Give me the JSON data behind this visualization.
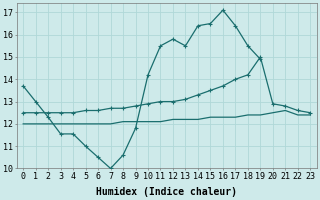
{
  "xlabel": "Humidex (Indice chaleur)",
  "xlim": [
    -0.5,
    23.5
  ],
  "ylim": [
    10,
    17.4
  ],
  "yticks": [
    10,
    11,
    12,
    13,
    14,
    15,
    16,
    17
  ],
  "xticks": [
    0,
    1,
    2,
    3,
    4,
    5,
    6,
    7,
    8,
    9,
    10,
    11,
    12,
    13,
    14,
    15,
    16,
    17,
    18,
    19,
    20,
    21,
    22,
    23
  ],
  "bg_color": "#ceeaea",
  "grid_color": "#b0d8d8",
  "line_color": "#1a6e6e",
  "line1_x": [
    0,
    1,
    2,
    3,
    4,
    5,
    6,
    7,
    8,
    9,
    10,
    11,
    12,
    13,
    14,
    15,
    16,
    17,
    18,
    19
  ],
  "line1_y": [
    13.7,
    13.0,
    12.3,
    11.55,
    11.55,
    11.0,
    10.5,
    10.0,
    10.6,
    11.8,
    14.2,
    15.5,
    15.8,
    15.5,
    16.4,
    16.5,
    17.1,
    16.4,
    15.5,
    14.9
  ],
  "line2_x": [
    0,
    1,
    2,
    3,
    4,
    5,
    6,
    7,
    8,
    9,
    10,
    11,
    12,
    13,
    14,
    15,
    16,
    17,
    18,
    19,
    20,
    21,
    22,
    23
  ],
  "line2_y": [
    12.5,
    12.5,
    12.5,
    12.5,
    12.5,
    12.6,
    12.6,
    12.7,
    12.7,
    12.8,
    12.9,
    13.0,
    13.0,
    13.1,
    13.3,
    13.5,
    13.7,
    14.0,
    14.2,
    15.0,
    12.9,
    12.8,
    12.6,
    12.5
  ],
  "line3_x": [
    0,
    1,
    2,
    3,
    4,
    5,
    6,
    7,
    8,
    9,
    10,
    11,
    12,
    13,
    14,
    15,
    16,
    17,
    18,
    19,
    20,
    21,
    22,
    23
  ],
  "line3_y": [
    12.0,
    12.0,
    12.0,
    12.0,
    12.0,
    12.0,
    12.0,
    12.0,
    12.1,
    12.1,
    12.1,
    12.1,
    12.2,
    12.2,
    12.2,
    12.3,
    12.3,
    12.3,
    12.4,
    12.4,
    12.5,
    12.6,
    12.4,
    12.4
  ],
  "fontsize_label": 7,
  "fontsize_tick": 6
}
